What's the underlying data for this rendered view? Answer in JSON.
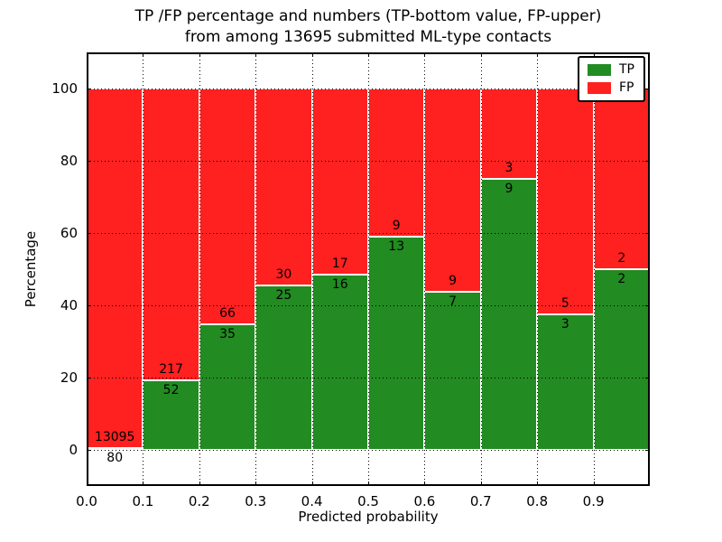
{
  "figure": {
    "title_lines": [
      "TP /FP percentage and numbers (TP-bottom value, FP-upper)",
      "from among 13695 submitted ML-type contacts"
    ]
  },
  "axes": {
    "xlabel": "Predicted probability",
    "ylabel": "Percentage"
  },
  "legend": {
    "position": "upper right",
    "entries": [
      {
        "label": "TP",
        "color": "#228b22"
      },
      {
        "label": "FP",
        "color": "#ff2020"
      }
    ]
  },
  "chart_data": {
    "type": "bar",
    "stacked": true,
    "normalized_to_percent": 100,
    "title": "TP /FP percentage and numbers (TP-bottom value, FP-upper) from among 13695 submitted ML-type contacts",
    "xlabel": "Predicted probability",
    "ylabel": "Percentage",
    "xlim": [
      0.0,
      1.0
    ],
    "ylim": [
      -10,
      110
    ],
    "xticks": [
      "0.0",
      "0.1",
      "0.2",
      "0.3",
      "0.4",
      "0.5",
      "0.6",
      "0.7",
      "0.8",
      "0.9"
    ],
    "yticks": [
      0,
      20,
      40,
      60,
      80,
      100
    ],
    "grid": "dotted",
    "grid_on_top": true,
    "bar_edge_color": "#ffffff",
    "colors": {
      "tp": "#228b22",
      "fp": "#ff2020"
    },
    "total_contacts": 13695,
    "bins": [
      {
        "x_start": 0.0,
        "x_end": 0.1,
        "tp": 80,
        "fp": 13095,
        "tp_pct": 0.61
      },
      {
        "x_start": 0.1,
        "x_end": 0.2,
        "tp": 52,
        "fp": 217,
        "tp_pct": 19.33
      },
      {
        "x_start": 0.2,
        "x_end": 0.3,
        "tp": 35,
        "fp": 66,
        "tp_pct": 34.65
      },
      {
        "x_start": 0.3,
        "x_end": 0.4,
        "tp": 25,
        "fp": 30,
        "tp_pct": 45.45
      },
      {
        "x_start": 0.4,
        "x_end": 0.5,
        "tp": 16,
        "fp": 17,
        "tp_pct": 48.48
      },
      {
        "x_start": 0.5,
        "x_end": 0.6,
        "tp": 13,
        "fp": 9,
        "tp_pct": 59.09
      },
      {
        "x_start": 0.6,
        "x_end": 0.7,
        "tp": 7,
        "fp": 9,
        "tp_pct": 43.75
      },
      {
        "x_start": 0.7,
        "x_end": 0.8,
        "tp": 9,
        "fp": 3,
        "tp_pct": 75.0
      },
      {
        "x_start": 0.8,
        "x_end": 0.9,
        "tp": 3,
        "fp": 5,
        "tp_pct": 37.5
      },
      {
        "x_start": 0.9,
        "x_end": 1.0,
        "tp": 2,
        "fp": 2,
        "tp_pct": 50.0
      }
    ]
  }
}
